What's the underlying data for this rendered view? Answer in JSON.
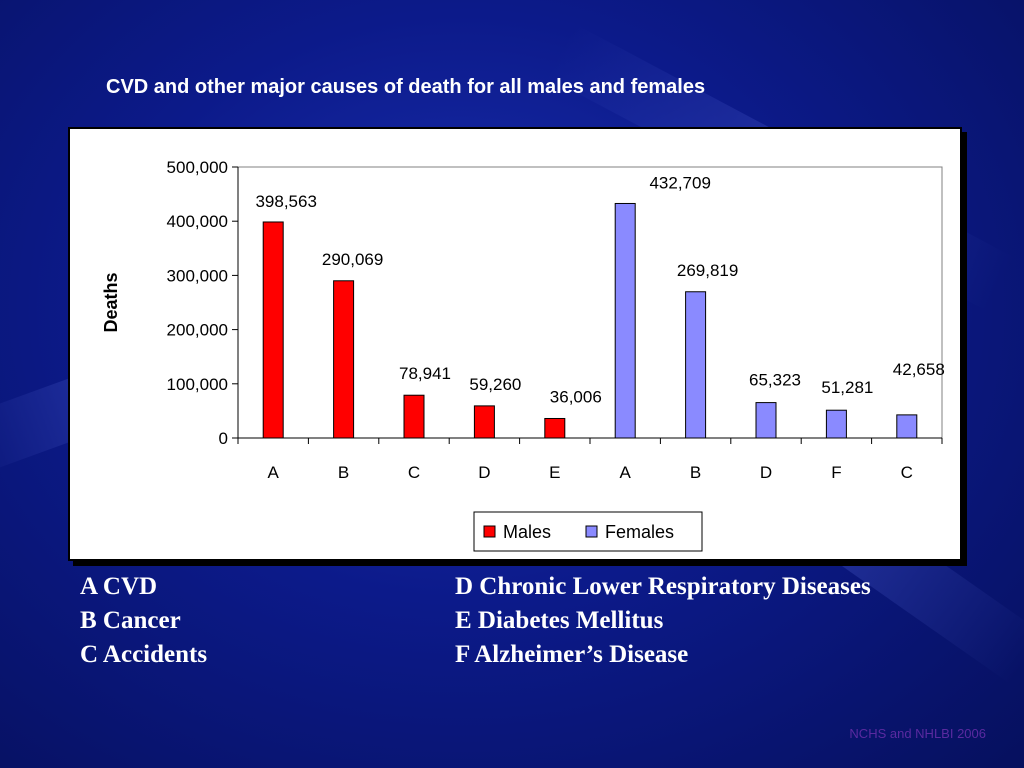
{
  "slide": {
    "title": "CVD and other major causes of death for all males and females",
    "source_note": "NCHS and NHLBI 2006"
  },
  "key_left": [
    "A CVD",
    "B Cancer",
    "C Accidents"
  ],
  "key_right": [
    "D Chronic Lower Respiratory Diseases",
    "E Diabetes Mellitus",
    "F Alzheimer’s Disease"
  ],
  "colors": {
    "males": "#ff0000",
    "females": "#8a8aff",
    "background": "#0c1a8a",
    "source_note": "#5a2aa0"
  },
  "chart_data": {
    "type": "bar",
    "title": "",
    "xlabel": "",
    "ylabel": "Deaths",
    "ylim": [
      0,
      500000
    ],
    "yticks": [
      "0",
      "100,000",
      "200,000",
      "300,000",
      "400,000",
      "500,000"
    ],
    "ytick_values": [
      0,
      100000,
      200000,
      300000,
      400000,
      500000
    ],
    "categories": [
      "A",
      "B",
      "C",
      "D",
      "E",
      "A",
      "B",
      "D",
      "F",
      "C"
    ],
    "series": [
      {
        "name": "Males",
        "color": "#ff0000",
        "values": [
          398563,
          290069,
          78941,
          59260,
          36006,
          null,
          null,
          null,
          null,
          null
        ]
      },
      {
        "name": "Females",
        "color": "#8a8aff",
        "values": [
          null,
          null,
          null,
          null,
          null,
          432709,
          269819,
          65323,
          51281,
          42658
        ]
      }
    ],
    "value_labels": [
      "398,563",
      "290,069",
      "78,941",
      "59,260",
      "36,006",
      "432,709",
      "269,819",
      "65,323",
      "51,281",
      "42,658"
    ],
    "grid": false,
    "legend": "bottom"
  }
}
